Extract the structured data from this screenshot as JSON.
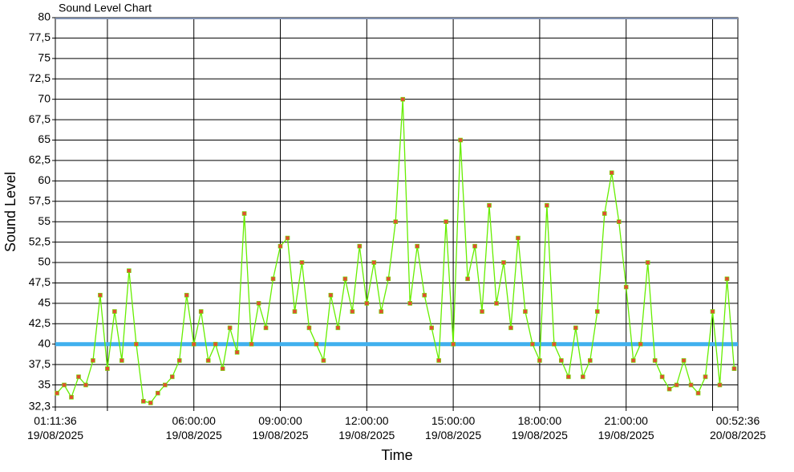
{
  "chart_data": {
    "type": "line",
    "title": "Sound Level Chart",
    "x_label": "Time",
    "y_label": "Sound Level",
    "x": [
      "2025-08-19T01:15",
      "2025-08-19T01:30",
      "2025-08-19T01:45",
      "2025-08-19T02:00",
      "2025-08-19T02:15",
      "2025-08-19T02:30",
      "2025-08-19T02:45",
      "2025-08-19T03:00",
      "2025-08-19T03:15",
      "2025-08-19T03:30",
      "2025-08-19T03:45",
      "2025-08-19T04:00",
      "2025-08-19T04:15",
      "2025-08-19T04:30",
      "2025-08-19T04:45",
      "2025-08-19T05:00",
      "2025-08-19T05:15",
      "2025-08-19T05:30",
      "2025-08-19T05:45",
      "2025-08-19T06:00",
      "2025-08-19T06:15",
      "2025-08-19T06:30",
      "2025-08-19T06:45",
      "2025-08-19T07:00",
      "2025-08-19T07:15",
      "2025-08-19T07:30",
      "2025-08-19T07:45",
      "2025-08-19T08:00",
      "2025-08-19T08:15",
      "2025-08-19T08:30",
      "2025-08-19T08:45",
      "2025-08-19T09:00",
      "2025-08-19T09:15",
      "2025-08-19T09:30",
      "2025-08-19T09:45",
      "2025-08-19T10:00",
      "2025-08-19T10:15",
      "2025-08-19T10:30",
      "2025-08-19T10:45",
      "2025-08-19T11:00",
      "2025-08-19T11:15",
      "2025-08-19T11:30",
      "2025-08-19T11:45",
      "2025-08-19T12:00",
      "2025-08-19T12:15",
      "2025-08-19T12:30",
      "2025-08-19T12:45",
      "2025-08-19T13:00",
      "2025-08-19T13:15",
      "2025-08-19T13:30",
      "2025-08-19T13:45",
      "2025-08-19T14:00",
      "2025-08-19T14:15",
      "2025-08-19T14:30",
      "2025-08-19T14:45",
      "2025-08-19T15:00",
      "2025-08-19T15:15",
      "2025-08-19T15:30",
      "2025-08-19T15:45",
      "2025-08-19T16:00",
      "2025-08-19T16:15",
      "2025-08-19T16:30",
      "2025-08-19T16:45",
      "2025-08-19T17:00",
      "2025-08-19T17:15",
      "2025-08-19T17:30",
      "2025-08-19T17:45",
      "2025-08-19T18:00",
      "2025-08-19T18:15",
      "2025-08-19T18:30",
      "2025-08-19T18:45",
      "2025-08-19T19:00",
      "2025-08-19T19:15",
      "2025-08-19T19:30",
      "2025-08-19T19:45",
      "2025-08-19T20:00",
      "2025-08-19T20:15",
      "2025-08-19T20:30",
      "2025-08-19T20:45",
      "2025-08-19T21:00",
      "2025-08-19T21:15",
      "2025-08-19T21:30",
      "2025-08-19T21:45",
      "2025-08-19T22:00",
      "2025-08-19T22:15",
      "2025-08-19T22:30",
      "2025-08-19T22:45",
      "2025-08-19T23:00",
      "2025-08-19T23:15",
      "2025-08-19T23:30",
      "2025-08-19T23:45",
      "2025-08-20T00:00",
      "2025-08-20T00:15",
      "2025-08-20T00:30",
      "2025-08-20T00:45"
    ],
    "series": [
      {
        "name": "Sound Level",
        "color": "#66ee00",
        "marker_color": "#e05030",
        "values": [
          34,
          35,
          33.5,
          36,
          35,
          38,
          46,
          37,
          44,
          38,
          49,
          40,
          33,
          32.8,
          34,
          35,
          36,
          38,
          46,
          40,
          44,
          38,
          40,
          37,
          42,
          39,
          56,
          40,
          45,
          42,
          48,
          52,
          53,
          44,
          50,
          42,
          40,
          38,
          46,
          42,
          48,
          44,
          52,
          45,
          50,
          44,
          48,
          55,
          70,
          45,
          52,
          46,
          42,
          38,
          55,
          40,
          65,
          48,
          52,
          44,
          57,
          45,
          50,
          42,
          53,
          44,
          40,
          38,
          57,
          40,
          38,
          36,
          42,
          36,
          38,
          44,
          56,
          61,
          55,
          47,
          38,
          40,
          50,
          38,
          36,
          34.5,
          35,
          38,
          35,
          34,
          36,
          44,
          35,
          48,
          37
        ]
      }
    ],
    "reference_line": {
      "value": 40,
      "color": "#40b0ee"
    },
    "xlim": [
      "2025-08-19T01:11:36",
      "2025-08-20T00:52:36"
    ],
    "xticks": [
      {
        "value": "2025-08-19T01:11:36",
        "label": "01:11:36\n19/08/2025"
      },
      {
        "value": "2025-08-19T06:00:00",
        "label": "06:00:00\n19/08/2025"
      },
      {
        "value": "2025-08-19T09:00:00",
        "label": "09:00:00\n19/08/2025"
      },
      {
        "value": "2025-08-19T12:00:00",
        "label": "12:00:00\n19/08/2025"
      },
      {
        "value": "2025-08-19T15:00:00",
        "label": "15:00:00\n19/08/2025"
      },
      {
        "value": "2025-08-19T18:00:00",
        "label": "18:00:00\n19/08/2025"
      },
      {
        "value": "2025-08-19T21:00:00",
        "label": "21:00:00\n19/08/2025"
      },
      {
        "value": "2025-08-20T00:52:36",
        "label": "00:52:36\n20/08/2025"
      }
    ],
    "x_unlabeled_gridlines": [
      "2025-08-19T03:00:00",
      "2025-08-20T00:00:00"
    ],
    "ylim": [
      32.3,
      80
    ],
    "yticks": [
      {
        "value": 32.3,
        "label": "32,3"
      },
      35,
      {
        "value": 37.5,
        "label": "37,5"
      },
      40,
      {
        "value": 42.5,
        "label": "42,5"
      },
      45,
      {
        "value": 47.5,
        "label": "47,5"
      },
      50,
      {
        "value": 52.5,
        "label": "52,5"
      },
      55,
      {
        "value": 57.5,
        "label": "57,5"
      },
      60,
      {
        "value": 62.5,
        "label": "62,5"
      },
      65,
      {
        "value": 67.5,
        "label": "67,5"
      },
      70,
      {
        "value": 72.5,
        "label": "72,5"
      },
      75,
      {
        "value": 77.5,
        "label": "77,5"
      },
      80
    ],
    "grid": true
  }
}
